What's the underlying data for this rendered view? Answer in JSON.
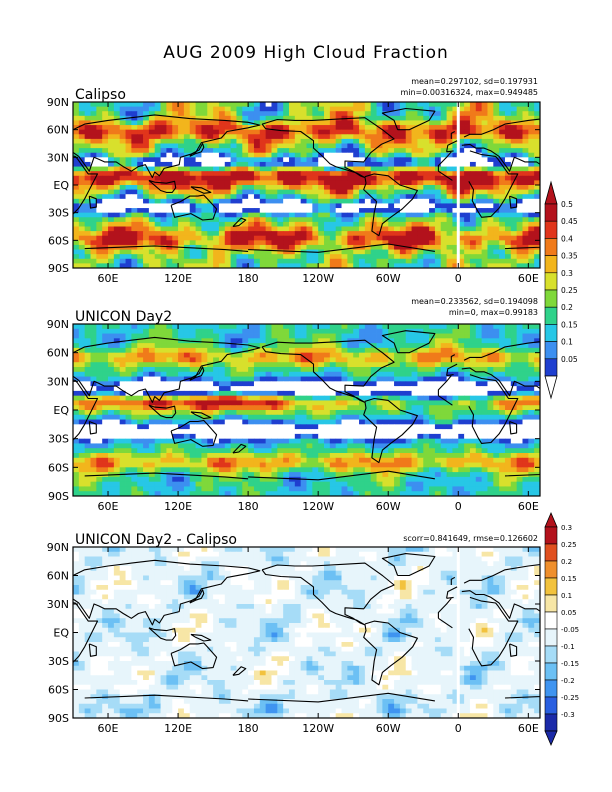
{
  "figure": {
    "title": "AUG 2009 High Cloud Fraction"
  },
  "colors": {
    "seq": [
      "#ffffff",
      "#1f3fd0",
      "#3c8ff0",
      "#27c7e6",
      "#2fd28a",
      "#7fd83a",
      "#d8e02c",
      "#f2b51c",
      "#f07a1a",
      "#e0351b",
      "#b3121c"
    ],
    "div": [
      "#1b2aa8",
      "#2a5fe0",
      "#3f94f0",
      "#6cc0f4",
      "#a6dcf7",
      "#e7f5fb",
      "#ffffff",
      "#f7e6a6",
      "#f2c23d",
      "#ef8f2c",
      "#e0501f",
      "#b3121c"
    ],
    "coast": "#000000",
    "frame": "#000000"
  },
  "panels": [
    {
      "title": "Calipso",
      "stats_line1": "mean=0.297102, sd=0.197931",
      "stats_line2": "min=0.00316324, max=0.949485",
      "field": "obs"
    },
    {
      "title": "UNICON Day2",
      "stats_line1": "mean=0.233562, sd=0.194098",
      "stats_line2": "min=0, max=0.99183",
      "field": "model"
    },
    {
      "title": "UNICON Day2 - Calipso",
      "stats_line1": "scorr=0.841649, rmse=0.126602",
      "stats_line2": "",
      "field": "diff"
    }
  ],
  "chart_data": [
    {
      "type": "heatmap",
      "title": "Calipso",
      "variable": "High Cloud Fraction",
      "x_ticks": [
        "60E",
        "120E",
        "180",
        "120W",
        "60W",
        "0",
        "60E"
      ],
      "x_tick_lons": [
        60,
        120,
        180,
        240,
        300,
        360,
        420
      ],
      "x_range_lon": [
        30,
        430
      ],
      "y_ticks": [
        "90N",
        "60N",
        "30N",
        "EQ",
        "30S",
        "60S",
        "90S"
      ],
      "y_tick_lats": [
        90,
        60,
        30,
        0,
        -30,
        -60,
        -90
      ],
      "stats": {
        "mean": 0.297102,
        "sd": 0.197931,
        "min": 0.00316324,
        "max": 0.949485
      }
    },
    {
      "type": "heatmap",
      "title": "UNICON Day2",
      "variable": "High Cloud Fraction",
      "x_ticks": [
        "60E",
        "120E",
        "180",
        "120W",
        "60W",
        "0",
        "60E"
      ],
      "y_ticks": [
        "90N",
        "60N",
        "30N",
        "EQ",
        "30S",
        "60S",
        "90S"
      ],
      "stats": {
        "mean": 0.233562,
        "sd": 0.194098,
        "min": 0,
        "max": 0.99183
      }
    },
    {
      "type": "heatmap",
      "title": "UNICON Day2 - Calipso",
      "variable": "High Cloud Fraction difference",
      "x_ticks": [
        "60E",
        "120E",
        "180",
        "120W",
        "60W",
        "0",
        "60E"
      ],
      "y_ticks": [
        "90N",
        "60N",
        "30N",
        "EQ",
        "30S",
        "60S",
        "90S"
      ],
      "stats": {
        "scorr": 0.841649,
        "rmse": 0.126602
      }
    }
  ],
  "colorbars": {
    "seq_labels": [
      "0.5",
      "0.45",
      "0.4",
      "0.35",
      "0.3",
      "0.25",
      "0.2",
      "0.15",
      "0.1",
      "0.05"
    ],
    "div_labels": [
      "0.3",
      "0.25",
      "0.2",
      "0.15",
      "0.1",
      "0.05",
      "-0.05",
      "-0.1",
      "-0.15",
      "-0.2",
      "-0.25",
      "-0.3"
    ]
  }
}
